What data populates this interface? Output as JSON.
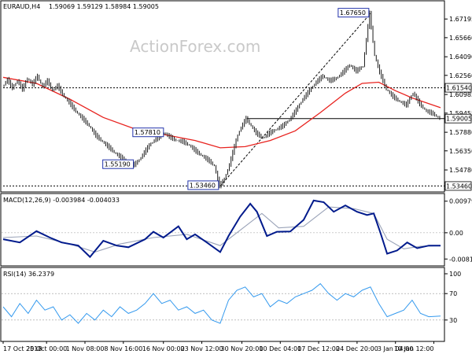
{
  "header": {
    "symbol": "EURAUD,H4",
    "ohlc": "1.59069 1.59129 1.58984 1.59005"
  },
  "watermark": "ActionForex.com",
  "colors": {
    "price": "#1a1a1a",
    "ma": "#e8231f",
    "macd": "#001a8c",
    "signal": "#9aa3b8",
    "rsi": "#3399ee",
    "trend": "#000000",
    "grid": "#000000"
  },
  "chart_data": [
    {
      "type": "line",
      "panel": "price",
      "title": "EURAUD,H4 1.59069 1.59129 1.58984 1.59005",
      "ylim": [
        1.531,
        1.685
      ],
      "y_ticks": [
        1.67195,
        1.6566,
        1.6409,
        1.6256,
        1.60985,
        1.59455,
        1.5788,
        1.5635,
        1.5478
      ],
      "price_path": [
        [
          0,
          1.616
        ],
        [
          3,
          1.622
        ],
        [
          6,
          1.615
        ],
        [
          9,
          1.621
        ],
        [
          12,
          1.614
        ],
        [
          15,
          1.623
        ],
        [
          18,
          1.618
        ],
        [
          21,
          1.625
        ],
        [
          24,
          1.616
        ],
        [
          27,
          1.621
        ],
        [
          30,
          1.613
        ],
        [
          33,
          1.617
        ],
        [
          36,
          1.61
        ],
        [
          40,
          1.603
        ],
        [
          44,
          1.596
        ],
        [
          48,
          1.59
        ],
        [
          52,
          1.584
        ],
        [
          56,
          1.576
        ],
        [
          60,
          1.571
        ],
        [
          64,
          1.566
        ],
        [
          68,
          1.561
        ],
        [
          72,
          1.557
        ],
        [
          76,
          1.553
        ],
        [
          79,
          1.5519
        ],
        [
          82,
          1.556
        ],
        [
          85,
          1.562
        ],
        [
          88,
          1.568
        ],
        [
          91,
          1.572
        ],
        [
          94,
          1.575
        ],
        [
          97,
          1.5781
        ],
        [
          100,
          1.575
        ],
        [
          104,
          1.572
        ],
        [
          108,
          1.571
        ],
        [
          112,
          1.568
        ],
        [
          116,
          1.563
        ],
        [
          120,
          1.559
        ],
        [
          124,
          1.555
        ],
        [
          127,
          1.551
        ],
        [
          130,
          1.5346
        ],
        [
          133,
          1.54
        ],
        [
          136,
          1.552
        ],
        [
          138,
          1.562
        ],
        [
          140,
          1.572
        ],
        [
          142,
          1.58
        ],
        [
          144,
          1.585
        ],
        [
          146,
          1.59
        ],
        [
          149,
          1.584
        ],
        [
          152,
          1.578
        ],
        [
          156,
          1.574
        ],
        [
          160,
          1.578
        ],
        [
          164,
          1.581
        ],
        [
          168,
          1.584
        ],
        [
          172,
          1.589
        ],
        [
          176,
          1.597
        ],
        [
          180,
          1.606
        ],
        [
          184,
          1.613
        ],
        [
          188,
          1.62
        ],
        [
          192,
          1.625
        ],
        [
          196,
          1.621
        ],
        [
          200,
          1.623
        ],
        [
          204,
          1.628
        ],
        [
          208,
          1.634
        ],
        [
          212,
          1.629
        ],
        [
          216,
          1.633
        ],
        [
          220,
          1.6765
        ],
        [
          223,
          1.642
        ],
        [
          226,
          1.628
        ],
        [
          230,
          1.614
        ],
        [
          234,
          1.608
        ],
        [
          238,
          1.604
        ],
        [
          242,
          1.601
        ],
        [
          246,
          1.611
        ],
        [
          250,
          1.602
        ],
        [
          254,
          1.596
        ],
        [
          258,
          1.594
        ],
        [
          262,
          1.59
        ]
      ],
      "ma_path": [
        [
          0,
          1.624
        ],
        [
          20,
          1.619
        ],
        [
          40,
          1.606
        ],
        [
          60,
          1.591
        ],
        [
          80,
          1.581
        ],
        [
          100,
          1.576
        ],
        [
          115,
          1.572
        ],
        [
          130,
          1.566
        ],
        [
          145,
          1.567
        ],
        [
          160,
          1.572
        ],
        [
          175,
          1.58
        ],
        [
          190,
          1.595
        ],
        [
          205,
          1.611
        ],
        [
          215,
          1.619
        ],
        [
          225,
          1.62
        ],
        [
          235,
          1.613
        ],
        [
          245,
          1.607
        ],
        [
          262,
          1.599
        ]
      ],
      "x_extent": [
        0,
        262
      ],
      "levels": [
        {
          "label": "1.61540",
          "value": 1.6154,
          "style": "dotted",
          "start_x": 0
        },
        {
          "label": "1.59005",
          "value": 1.59005,
          "style": "solid",
          "start_x": 146
        },
        {
          "label": "1.53460",
          "value": 1.5346,
          "style": "dotted",
          "start_x": 0
        }
      ],
      "annotations": [
        {
          "text": "1.67650",
          "x": 220,
          "value": 1.6765,
          "place": "left"
        },
        {
          "text": "1.57810",
          "x": 97,
          "value": 1.5781,
          "place": "left"
        },
        {
          "text": "1.55190",
          "x": 79,
          "value": 1.5519,
          "place": "left"
        },
        {
          "text": "1.53460",
          "x": 130,
          "value": 1.5346,
          "place": "left"
        }
      ],
      "trendline": {
        "from": [
          130,
          1.5346
        ],
        "to": [
          220,
          1.6765
        ],
        "style": "dashed"
      }
    },
    {
      "type": "line",
      "panel": "macd",
      "title": "MACD(12,26,9) -0.003984 -0.004033",
      "ylim": [
        -0.0098,
        0.0112
      ],
      "y_ticks": [
        {
          "label": "0.009797",
          "value": 0.009797
        },
        {
          "label": "0.00",
          "value": 0.0
        },
        {
          "label": "-0.008152",
          "value": -0.008152
        }
      ],
      "series": [
        {
          "name": "MACD",
          "values": [
            [
              0,
              -0.002
            ],
            [
              10,
              -0.003
            ],
            [
              20,
              0.0005
            ],
            [
              28,
              -0.0015
            ],
            [
              35,
              -0.003
            ],
            [
              45,
              -0.004
            ],
            [
              52,
              -0.0075
            ],
            [
              60,
              -0.0025
            ],
            [
              68,
              -0.004
            ],
            [
              75,
              -0.0045
            ],
            [
              85,
              -0.002
            ],
            [
              90,
              0.0003
            ],
            [
              96,
              -0.0015
            ],
            [
              105,
              0.002
            ],
            [
              110,
              -0.002
            ],
            [
              115,
              -0.0005
            ],
            [
              122,
              -0.003
            ],
            [
              130,
              -0.006
            ],
            [
              135,
              -0.001
            ],
            [
              142,
              0.005
            ],
            [
              148,
              0.009
            ],
            [
              152,
              0.0065
            ],
            [
              158,
              -0.001
            ],
            [
              164,
              0.0003
            ],
            [
              172,
              0.0004
            ],
            [
              180,
              0.004
            ],
            [
              186,
              0.01
            ],
            [
              192,
              0.0095
            ],
            [
              198,
              0.0065
            ],
            [
              205,
              0.0085
            ],
            [
              212,
              0.0065
            ],
            [
              218,
              0.0055
            ],
            [
              222,
              0.006
            ],
            [
              226,
              0.0
            ],
            [
              230,
              -0.0065
            ],
            [
              236,
              -0.0055
            ],
            [
              242,
              -0.003
            ],
            [
              248,
              -0.0048
            ],
            [
              255,
              -0.004
            ],
            [
              262,
              -0.004
            ]
          ]
        },
        {
          "name": "Signal",
          "values": [
            [
              0,
              -0.0015
            ],
            [
              20,
              -0.001
            ],
            [
              40,
              -0.0035
            ],
            [
              55,
              -0.006
            ],
            [
              70,
              -0.0035
            ],
            [
              90,
              -0.0015
            ],
            [
              110,
              -0.0005
            ],
            [
              130,
              -0.004
            ],
            [
              145,
              0.002
            ],
            [
              155,
              0.006
            ],
            [
              165,
              0.0015
            ],
            [
              180,
              0.002
            ],
            [
              195,
              0.008
            ],
            [
              210,
              0.0075
            ],
            [
              222,
              0.006
            ],
            [
              230,
              -0.002
            ],
            [
              240,
              -0.005
            ],
            [
              250,
              -0.0042
            ],
            [
              262,
              -0.004
            ]
          ]
        }
      ]
    },
    {
      "type": "line",
      "panel": "rsi",
      "title": "RSI(14) 36.2379",
      "ylim": [
        0,
        100
      ],
      "y_ticks": [
        100,
        70,
        30,
        0
      ],
      "series": [
        {
          "name": "RSI",
          "values": [
            [
              0,
              50
            ],
            [
              5,
              35
            ],
            [
              10,
              55
            ],
            [
              15,
              40
            ],
            [
              20,
              60
            ],
            [
              25,
              45
            ],
            [
              30,
              50
            ],
            [
              35,
              30
            ],
            [
              40,
              38
            ],
            [
              45,
              25
            ],
            [
              50,
              40
            ],
            [
              55,
              30
            ],
            [
              60,
              45
            ],
            [
              65,
              35
            ],
            [
              70,
              50
            ],
            [
              75,
              40
            ],
            [
              80,
              45
            ],
            [
              85,
              55
            ],
            [
              90,
              70
            ],
            [
              95,
              55
            ],
            [
              100,
              60
            ],
            [
              105,
              45
            ],
            [
              110,
              50
            ],
            [
              115,
              40
            ],
            [
              120,
              45
            ],
            [
              125,
              30
            ],
            [
              130,
              25
            ],
            [
              135,
              60
            ],
            [
              140,
              75
            ],
            [
              145,
              80
            ],
            [
              150,
              65
            ],
            [
              155,
              70
            ],
            [
              160,
              50
            ],
            [
              165,
              60
            ],
            [
              170,
              55
            ],
            [
              175,
              65
            ],
            [
              180,
              70
            ],
            [
              185,
              75
            ],
            [
              190,
              85
            ],
            [
              195,
              70
            ],
            [
              200,
              60
            ],
            [
              205,
              70
            ],
            [
              210,
              65
            ],
            [
              215,
              75
            ],
            [
              220,
              80
            ],
            [
              225,
              55
            ],
            [
              230,
              35
            ],
            [
              235,
              40
            ],
            [
              240,
              45
            ],
            [
              245,
              60
            ],
            [
              250,
              40
            ],
            [
              255,
              35
            ],
            [
              262,
              36
            ]
          ]
        }
      ]
    }
  ],
  "x_axis_labels": [
    {
      "text": "17 Oct 2018",
      "x": 0
    },
    {
      "text": "25 Oct 00:00",
      "x": 26
    },
    {
      "text": "1 Nov 08:00",
      "x": 49
    },
    {
      "text": "8 Nov 16:00",
      "x": 72
    },
    {
      "text": "16 Nov 00:00",
      "x": 96
    },
    {
      "text": "23 Nov 12:00",
      "x": 119
    },
    {
      "text": "30 Nov 20:00",
      "x": 143
    },
    {
      "text": "10 Dec 04:00",
      "x": 166
    },
    {
      "text": "17 Dec 12:00",
      "x": 189
    },
    {
      "text": "24 Dec 20:00",
      "x": 212
    },
    {
      "text": "3 Jan 04:00",
      "x": 235
    },
    {
      "text": "10 Jan 12:00",
      "x": 258
    }
  ]
}
